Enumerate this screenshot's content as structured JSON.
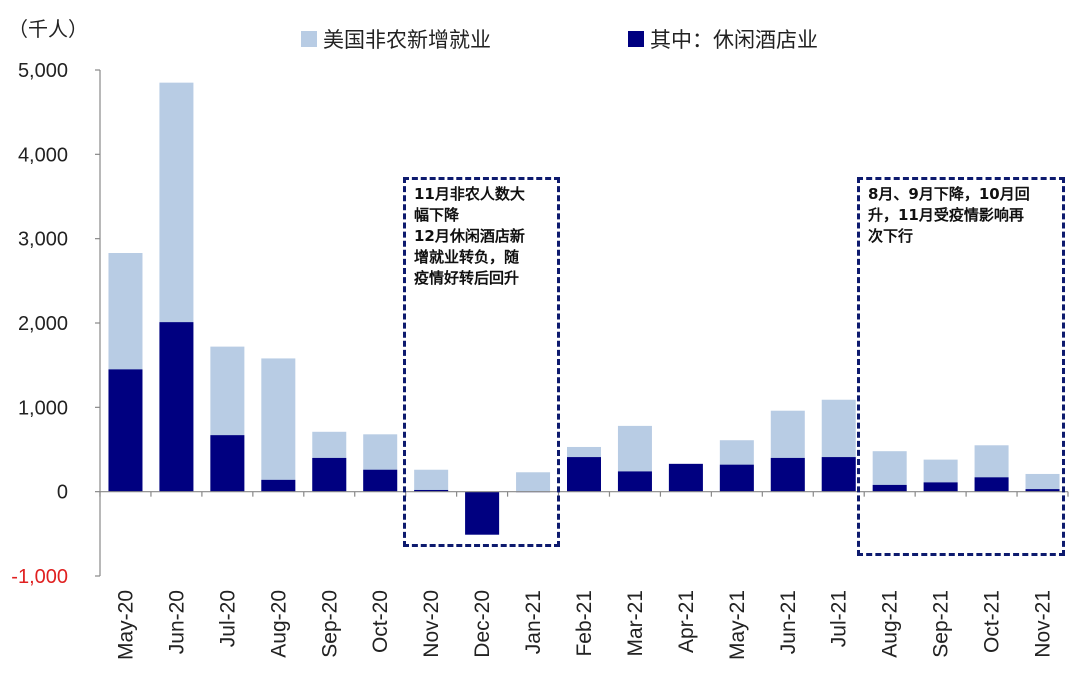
{
  "chart_data": {
    "type": "bar",
    "overlay": true,
    "unit_label": "（千人）",
    "categories": [
      "May-20",
      "Jun-20",
      "Jul-20",
      "Aug-20",
      "Sep-20",
      "Oct-20",
      "Nov-20",
      "Dec-20",
      "Jan-21",
      "Feb-21",
      "Mar-21",
      "Apr-21",
      "May-21",
      "Jun-21",
      "Jul-21",
      "Aug-21",
      "Sep-21",
      "Oct-21",
      "Nov-21"
    ],
    "series": [
      {
        "name": "美国非农新增就业",
        "color": "#b8cce4",
        "values": [
          2830,
          4850,
          1720,
          1580,
          710,
          680,
          260,
          -510,
          230,
          530,
          780,
          270,
          610,
          960,
          1090,
          480,
          380,
          550,
          210
        ]
      },
      {
        "name": "其中：休闲酒店业",
        "color": "#000080",
        "values": [
          1450,
          2010,
          670,
          140,
          400,
          260,
          20,
          -510,
          0,
          410,
          240,
          330,
          320,
          400,
          410,
          80,
          110,
          170,
          30
        ]
      }
    ],
    "ylim": [
      -1000,
      5000
    ],
    "yticks": [
      {
        "value": 5000,
        "label": "5,000"
      },
      {
        "value": 4000,
        "label": "4,000"
      },
      {
        "value": 3000,
        "label": "3,000"
      },
      {
        "value": 2000,
        "label": "2,000"
      },
      {
        "value": 1000,
        "label": "1,000"
      },
      {
        "value": 0,
        "label": "0"
      },
      {
        "value": -1000,
        "label": "-1,000"
      }
    ],
    "legend_position": "top",
    "annotations": [
      {
        "id": "left",
        "lines": [
          "11月非农人数大",
          "幅下降",
          "12月休闲酒店新",
          "增就业转负，随",
          "疫情好转后回升"
        ]
      },
      {
        "id": "right",
        "lines": [
          "8月、9月下降，10月回",
          "升，11月受疫情影响再",
          "次下行"
        ]
      }
    ]
  }
}
